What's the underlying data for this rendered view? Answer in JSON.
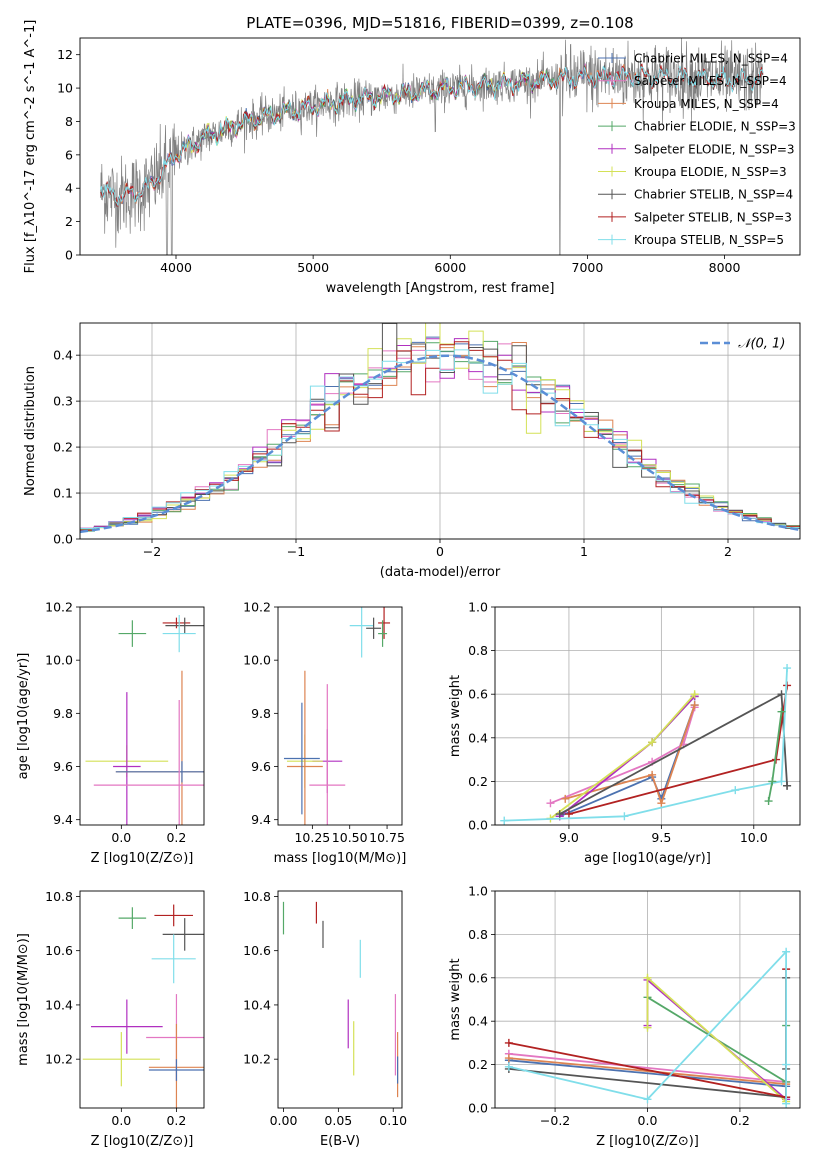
{
  "figure": {
    "title": "PLATE=0396, MJD=51816, FIBERID=0399, z=0.108"
  },
  "colors": {
    "Chabrier MILES": "#4c72b0",
    "Salpeter MILES": "#e377c2",
    "Kroupa MILES": "#dd8452",
    "Chabrier ELODIE": "#55a868",
    "Salpeter ELODIE": "#b030c0",
    "Kroupa ELODIE": "#d4e157",
    "Chabrier STELIB": "#555555",
    "Salpeter STELIB": "#b22222",
    "Kroupa STELIB": "#80deea",
    "normal": "#5b8ed6"
  },
  "chart_data": [
    {
      "id": "spectrum",
      "type": "line",
      "xlabel": "wavelength [Angstrom, rest frame]",
      "ylabel": "Flux [f_λ10^-17 erg cm^-2 s^-1 A^-1]",
      "xlim": [
        3300,
        8550
      ],
      "ylim": [
        0,
        13
      ],
      "xticks": [
        4000,
        5000,
        6000,
        7000,
        8000
      ],
      "yticks": [
        0,
        2,
        4,
        6,
        8,
        10,
        12
      ],
      "grid": false,
      "legend_position": "lower-right",
      "continuum": {
        "x": [
          3450,
          3600,
          3800,
          4000,
          4200,
          4500,
          4800,
          5000,
          5200,
          5500,
          5800,
          6000,
          6300,
          6600,
          6900,
          7200,
          7500,
          7800,
          8000,
          8280
        ],
        "y": [
          3.8,
          3.5,
          4.0,
          6.0,
          7.0,
          8.0,
          8.6,
          8.9,
          9.2,
          9.5,
          9.8,
          10.0,
          10.2,
          10.4,
          10.6,
          10.7,
          10.7,
          10.6,
          10.5,
          10.5
        ]
      },
      "series": [
        {
          "name": "Chabrier MILES, N_SSP=4"
        },
        {
          "name": "Salpeter MILES, N_SSP=4"
        },
        {
          "name": "Kroupa MILES, N_SSP=4"
        },
        {
          "name": "Chabrier ELODIE, N_SSP=3"
        },
        {
          "name": "Salpeter ELODIE, N_SSP=3"
        },
        {
          "name": "Kroupa ELODIE, N_SSP=3"
        },
        {
          "name": "Chabrier STELIB, N_SSP=4"
        },
        {
          "name": "Salpeter STELIB, N_SSP=3"
        },
        {
          "name": "Kroupa STELIB, N_SSP=5"
        }
      ]
    },
    {
      "id": "residuals",
      "type": "line",
      "xlabel": "(data-model)/error",
      "ylabel": "Normed distribution",
      "xlim": [
        -2.5,
        2.5
      ],
      "ylim": [
        0,
        0.47
      ],
      "xticks": [
        -2,
        -1,
        0,
        1,
        2
      ],
      "yticks": [
        0.0,
        0.1,
        0.2,
        0.3,
        0.4
      ],
      "grid": true,
      "legend": "𝒩(0, 1)",
      "legend_position": "top-right",
      "normal_mean": 0.05,
      "normal_sigma": 1.0,
      "histogram_bin_width": 0.1
    },
    {
      "id": "age-vs-Z",
      "type": "scatter",
      "xlabel": "Z [log10(Z/Z⊙)]",
      "ylabel": "age [log10(age/yr)]",
      "xlim": [
        -0.15,
        0.3
      ],
      "ylim": [
        9.38,
        10.2
      ],
      "xticks": [
        0.0,
        0.2
      ],
      "yticks": [
        9.4,
        9.6,
        9.8,
        10.0,
        10.2
      ],
      "points": [
        {
          "model": "Chabrier ELODIE",
          "x": 0.04,
          "xerr": 0.05,
          "y": 10.1,
          "yerr": 0.05
        },
        {
          "model": "Salpeter STELIB",
          "x": 0.2,
          "xerr": 0.05,
          "y": 10.14,
          "yerr": 0.02
        },
        {
          "model": "Chabrier STELIB",
          "x": 0.23,
          "xerr": 0.07,
          "y": 10.13,
          "yerr": 0.03
        },
        {
          "model": "Kroupa STELIB",
          "x": 0.21,
          "xerr": 0.06,
          "y": 10.1,
          "yerr": 0.07
        },
        {
          "model": "Kroupa ELODIE",
          "x": 0.02,
          "xerr": 0.15,
          "y": 9.62,
          "yerr": 0.06
        },
        {
          "model": "Salpeter ELODIE",
          "x": 0.02,
          "xerr": 0.05,
          "y": 9.6,
          "yerr": 0.28
        },
        {
          "model": "Kroupa MILES",
          "x": 0.22,
          "xerr": 0.24,
          "y": 9.58,
          "yerr": 0.38
        },
        {
          "model": "Chabrier MILES",
          "x": 0.22,
          "xerr": 0.24,
          "y": 9.58,
          "yerr": 0.04
        },
        {
          "model": "Salpeter MILES",
          "x": 0.21,
          "xerr": 0.31,
          "y": 9.53,
          "yerr": 0.32
        }
      ]
    },
    {
      "id": "age-vs-mass",
      "type": "scatter",
      "xlabel": "mass [log10(M/M⊙)]",
      "ylabel": "",
      "xlim": [
        10.02,
        10.85
      ],
      "ylim": [
        9.38,
        10.2
      ],
      "xticks": [
        10.25,
        10.5,
        10.75
      ],
      "yticks": [
        9.4,
        9.6,
        9.8,
        10.0,
        10.2
      ],
      "points": [
        {
          "model": "Kroupa STELIB",
          "x": 10.58,
          "xerr": 0.08,
          "y": 10.13,
          "yerr": 0.12
        },
        {
          "model": "Chabrier STELIB",
          "x": 10.66,
          "xerr": 0.05,
          "y": 10.12,
          "yerr": 0.04
        },
        {
          "model": "Salpeter STELIB",
          "x": 10.73,
          "xerr": 0.04,
          "y": 10.14,
          "yerr": 0.06
        },
        {
          "model": "Chabrier ELODIE",
          "x": 10.72,
          "xerr": 0.03,
          "y": 10.1,
          "yerr": 0.05
        },
        {
          "model": "Salpeter ELODIE",
          "x": 10.35,
          "xerr": 0.1,
          "y": 9.62,
          "yerr": 0.12
        },
        {
          "model": "Kroupa ELODIE",
          "x": 10.2,
          "xerr": 0.12,
          "y": 9.62,
          "yerr": 0.1
        },
        {
          "model": "Kroupa MILES",
          "x": 10.2,
          "xerr": 0.12,
          "y": 9.6,
          "yerr": 0.36
        },
        {
          "model": "Chabrier MILES",
          "x": 10.18,
          "xerr": 0.12,
          "y": 9.63,
          "yerr": 0.21
        },
        {
          "model": "Salpeter MILES",
          "x": 10.35,
          "xerr": 0.12,
          "y": 9.53,
          "yerr": 0.38
        }
      ]
    },
    {
      "id": "weight-vs-age",
      "type": "line",
      "xlabel": "age [log10(age/yr)]",
      "ylabel": "mass weight",
      "xlim": [
        8.6,
        10.25
      ],
      "ylim": [
        0,
        1
      ],
      "xticks": [
        9.0,
        9.5,
        10.0
      ],
      "yticks": [
        0.0,
        0.2,
        0.4,
        0.6,
        0.8,
        1.0
      ],
      "grid": true,
      "series": [
        {
          "model": "Chabrier MILES",
          "x": [
            8.95,
            9.45,
            9.5,
            9.68
          ],
          "y": [
            0.04,
            0.22,
            0.12,
            0.55
          ]
        },
        {
          "model": "Salpeter MILES",
          "x": [
            8.9,
            9.45,
            9.62,
            9.68
          ],
          "y": [
            0.1,
            0.29,
            0.37,
            0.54
          ]
        },
        {
          "model": "Kroupa MILES",
          "x": [
            8.98,
            9.45,
            9.5,
            9.68
          ],
          "y": [
            0.12,
            0.23,
            0.1,
            0.55
          ]
        },
        {
          "model": "Chabrier ELODIE",
          "x": [
            9.45,
            9.68
          ],
          "y": [
            0.38,
            0.59
          ]
        },
        {
          "model": "Salpeter ELODIE",
          "x": [
            8.95,
            9.45,
            9.68
          ],
          "y": [
            0.04,
            0.38,
            0.59
          ]
        },
        {
          "model": "Kroupa ELODIE",
          "x": [
            8.9,
            9.45,
            9.68
          ],
          "y": [
            0.03,
            0.38,
            0.6
          ]
        },
        {
          "model": "Chabrier STELIB",
          "x": [
            8.95,
            10.15,
            10.18,
            10.18
          ],
          "y": [
            0.05,
            0.6,
            0.18,
            0.18
          ]
        },
        {
          "model": "Salpeter STELIB",
          "x": [
            9.0,
            10.12,
            10.18
          ],
          "y": [
            0.05,
            0.3,
            0.64
          ]
        },
        {
          "model": "Kroupa STELIB",
          "x": [
            8.65,
            9.3,
            9.9,
            10.15,
            10.18
          ],
          "y": [
            0.02,
            0.04,
            0.16,
            0.2,
            0.72
          ]
        },
        {
          "model": "Chabrier ELODIE",
          "x": [
            10.08,
            10.1,
            10.15
          ],
          "y": [
            0.11,
            0.2,
            0.52
          ]
        }
      ]
    },
    {
      "id": "mass-vs-Z",
      "type": "scatter",
      "xlabel": "Z [log10(Z/Z⊙)]",
      "ylabel": "mass [log10(M/M⊙)]",
      "xlim": [
        -0.15,
        0.3
      ],
      "ylim": [
        10.02,
        10.82
      ],
      "xticks": [
        0.0,
        0.2
      ],
      "yticks": [
        10.2,
        10.4,
        10.6,
        10.8
      ],
      "points": [
        {
          "model": "Chabrier ELODIE",
          "x": 0.04,
          "xerr": 0.05,
          "y": 10.72,
          "yerr": 0.04
        },
        {
          "model": "Salpeter STELIB",
          "x": 0.19,
          "xerr": 0.07,
          "y": 10.73,
          "yerr": 0.04
        },
        {
          "model": "Chabrier STELIB",
          "x": 0.23,
          "xerr": 0.08,
          "y": 10.66,
          "yerr": 0.06
        },
        {
          "model": "Kroupa STELIB",
          "x": 0.19,
          "xerr": 0.08,
          "y": 10.57,
          "yerr": 0.09
        },
        {
          "model": "Salpeter ELODIE",
          "x": 0.02,
          "xerr": 0.13,
          "y": 10.32,
          "yerr": 0.1
        },
        {
          "model": "Salpeter MILES",
          "x": 0.2,
          "xerr": 0.11,
          "y": 10.28,
          "yerr": 0.16
        },
        {
          "model": "Kroupa ELODIE",
          "x": 0.0,
          "xerr": 0.14,
          "y": 10.2,
          "yerr": 0.1
        },
        {
          "model": "Kroupa MILES",
          "x": 0.2,
          "xerr": 0.1,
          "y": 10.17,
          "yerr": 0.16
        },
        {
          "model": "Chabrier MILES",
          "x": 0.2,
          "xerr": 0.1,
          "y": 10.16,
          "yerr": 0.04
        }
      ]
    },
    {
      "id": "mass-vs-ebv",
      "type": "scatter",
      "xlabel": "E(B-V)",
      "ylabel": "",
      "xlim": [
        -0.005,
        0.108
      ],
      "ylim": [
        10.02,
        10.82
      ],
      "xticks": [
        0.0,
        0.05,
        0.1
      ],
      "yticks": [
        10.2,
        10.4,
        10.6,
        10.8
      ],
      "points": [
        {
          "model": "Chabrier ELODIE",
          "x": 0.0,
          "y": 10.72,
          "yerr": 0.06
        },
        {
          "model": "Salpeter STELIB",
          "x": 0.03,
          "y": 10.74,
          "yerr": 0.04
        },
        {
          "model": "Chabrier STELIB",
          "x": 0.036,
          "y": 10.66,
          "yerr": 0.05
        },
        {
          "model": "Kroupa STELIB",
          "x": 0.07,
          "y": 10.57,
          "yerr": 0.07
        },
        {
          "model": "Salpeter ELODIE",
          "x": 0.059,
          "y": 10.33,
          "yerr": 0.09
        },
        {
          "model": "Kroupa ELODIE",
          "x": 0.064,
          "y": 10.24,
          "yerr": 0.1
        },
        {
          "model": "Salpeter MILES",
          "x": 0.102,
          "y": 10.29,
          "yerr": 0.15
        },
        {
          "model": "Kroupa MILES",
          "x": 0.104,
          "y": 10.18,
          "yerr": 0.12
        },
        {
          "model": "Chabrier MILES",
          "x": 0.104,
          "y": 10.16,
          "yerr": 0.05
        }
      ]
    },
    {
      "id": "weight-vs-Z",
      "type": "line",
      "xlabel": "Z [log10(Z/Z⊙)]",
      "ylabel": "mass weight",
      "xlim": [
        -0.33,
        0.33
      ],
      "ylim": [
        0,
        1
      ],
      "xticks": [
        -0.2,
        0.0,
        0.2
      ],
      "yticks": [
        0.0,
        0.2,
        0.4,
        0.6,
        0.8,
        1.0
      ],
      "grid": true,
      "series": [
        {
          "model": "Chabrier MILES",
          "x": [
            -0.3,
            0.3
          ],
          "y": [
            0.22,
            0.1
          ]
        },
        {
          "model": "Salpeter MILES",
          "x": [
            -0.3,
            0.3
          ],
          "y": [
            0.25,
            0.12
          ]
        },
        {
          "model": "Kroupa MILES",
          "x": [
            -0.3,
            0.3
          ],
          "y": [
            0.23,
            0.11
          ]
        },
        {
          "model": "Chabrier ELODIE",
          "x": [
            0.0,
            0.3,
            0.3
          ],
          "y": [
            0.51,
            0.12,
            0.38
          ]
        },
        {
          "model": "Salpeter ELODIE",
          "x": [
            0.0,
            0.0,
            0.3
          ],
          "y": [
            0.38,
            0.59,
            0.04
          ]
        },
        {
          "model": "Kroupa ELODIE",
          "x": [
            0.0,
            0.0,
            0.3
          ],
          "y": [
            0.37,
            0.6,
            0.03
          ]
        },
        {
          "model": "Chabrier STELIB",
          "x": [
            -0.3,
            0.3,
            0.3,
            0.3
          ],
          "y": [
            0.18,
            0.05,
            0.6,
            0.18
          ]
        },
        {
          "model": "Salpeter STELIB",
          "x": [
            -0.3,
            0.3,
            0.3
          ],
          "y": [
            0.3,
            0.05,
            0.64
          ]
        },
        {
          "model": "Kroupa STELIB",
          "x": [
            -0.3,
            0.0,
            0.3,
            0.3,
            0.3
          ],
          "y": [
            0.19,
            0.04,
            0.72,
            0.02,
            0.2
          ]
        }
      ]
    }
  ]
}
